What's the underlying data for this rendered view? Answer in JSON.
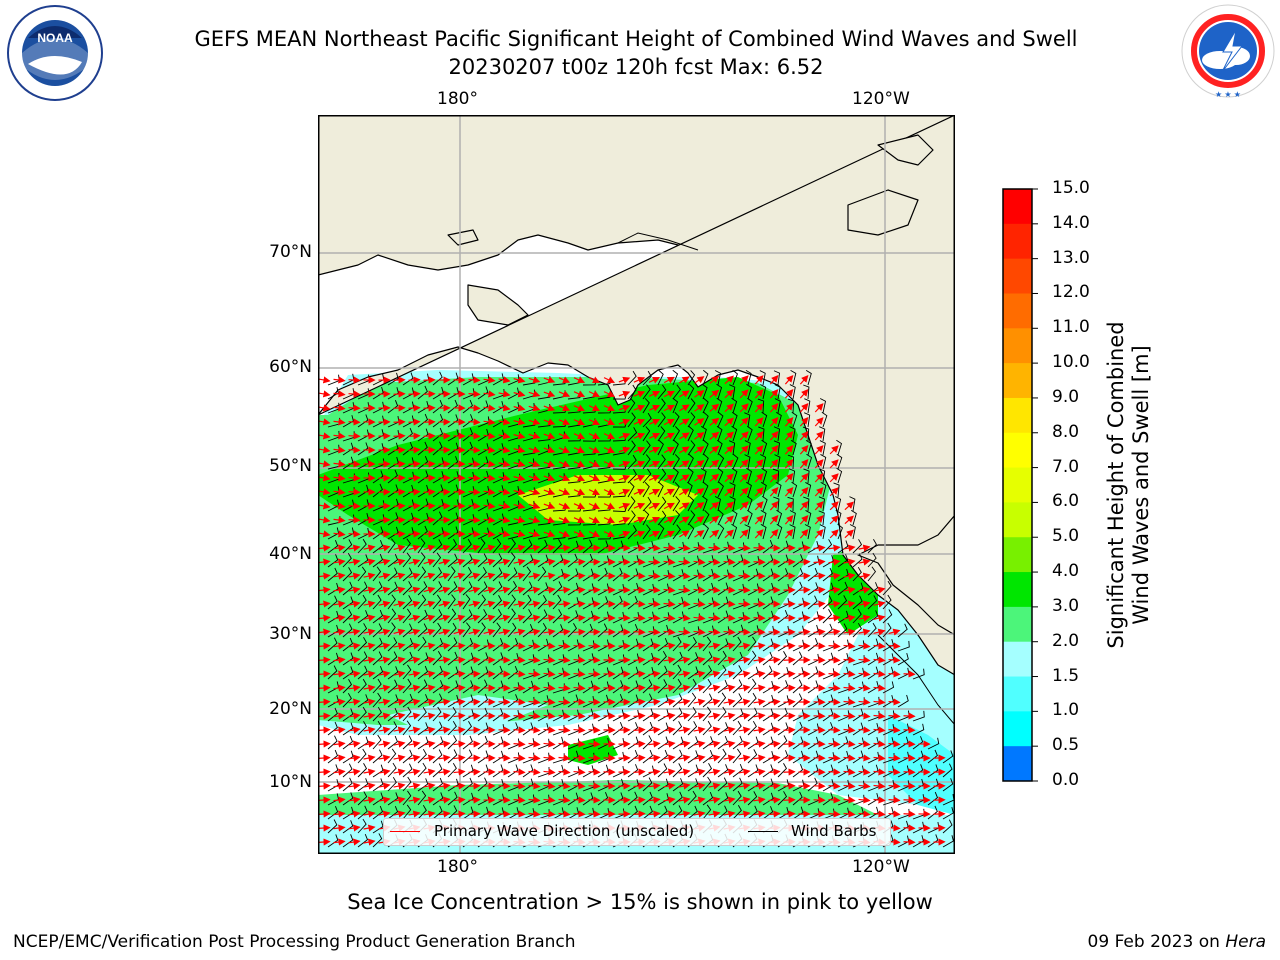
{
  "title": {
    "line1": "GEFS MEAN Northeast Pacific Significant Height of Combined Wind Waves and Swell",
    "line2": "20230207 t00z 120h fcst   Max: 6.52"
  },
  "logos": {
    "left": {
      "name": "noaa-logo",
      "text": "NOAA",
      "ring_text": "NATIONAL OCEANIC AND ATMOSPHERIC ADMINISTRATION · U.S. DEPARTMENT OF COMMERCE"
    },
    "right": {
      "name": "nws-logo",
      "ring_text": "NATIONAL WEATHER SERVICE"
    }
  },
  "map": {
    "lon_labels_top": [
      "180°",
      "120°W"
    ],
    "lon_labels_bottom": [
      "180°",
      "120°W"
    ],
    "lat_labels": [
      "70°N",
      "60°N",
      "50°N",
      "40°N",
      "30°N",
      "20°N",
      "10°N"
    ],
    "colors": {
      "land": "#efeddb",
      "ocean_default": "#a5ffff",
      "grid": "#b0b0b0",
      "arrow": "#ff0000",
      "barb": "#000000"
    }
  },
  "colorbar": {
    "label_line1": "Significant Height of Combined",
    "label_line2": "Wind Waves and Swell [m]",
    "ticks": [
      "15.0",
      "14.0",
      "13.0",
      "12.0",
      "11.0",
      "10.0",
      "9.0",
      "8.0",
      "7.0",
      "6.0",
      "5.0",
      "4.0",
      "3.0",
      "2.0",
      "1.5",
      "1.0",
      "0.5",
      "0.0"
    ],
    "colors_top_to_bottom": [
      "#ff0000",
      "#ff2400",
      "#ff4800",
      "#ff6c00",
      "#ff9000",
      "#ffb400",
      "#ffe600",
      "#ffff00",
      "#e6ff00",
      "#c8ff00",
      "#78f000",
      "#00e600",
      "#4cf57a",
      "#a5ffff",
      "#50ffff",
      "#00ffff",
      "#0078ff",
      "#0000ff"
    ]
  },
  "legend": {
    "wave_dir_label": "Primary Wave Direction (unscaled)",
    "wind_barbs_label": "Wind Barbs"
  },
  "footnote": "Sea Ice Concentration > 15% is shown in pink to yellow",
  "footer": {
    "left": "NCEP/EMC/Verification Post Processing Product Generation Branch",
    "right_prefix": "09 Feb 2023 on ",
    "right_machine": "Hera"
  }
}
